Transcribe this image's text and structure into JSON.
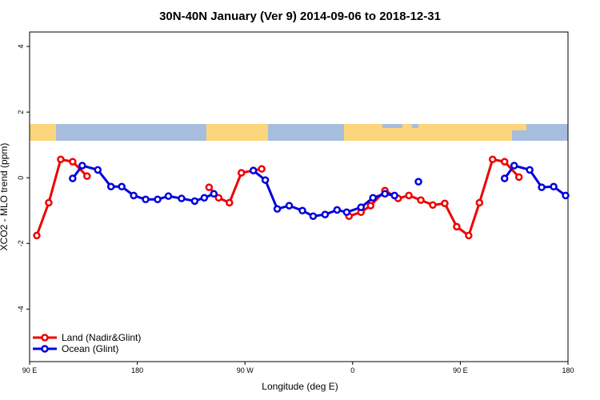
{
  "chart_data": {
    "type": "line",
    "title": "30N-40N January (Ver 9)   2014-09-06 to 2018-12-31",
    "x_label": "Longitude (deg E)",
    "y_label": "XCO2 - MLO trend (ppm)",
    "xlim": [
      90,
      540
    ],
    "ylim": [
      -5.6,
      4.44
    ],
    "xticks": [
      {
        "value": 90,
        "label": "90 E"
      },
      {
        "value": 180,
        "label": "180"
      },
      {
        "value": 270,
        "label": "90 W"
      },
      {
        "value": 360,
        "label": "0"
      },
      {
        "value": 450,
        "label": "90 E"
      },
      {
        "value": 540,
        "label": "180"
      }
    ],
    "yticks": [
      4,
      2,
      0,
      -2,
      -4
    ],
    "legend": "bottom-left",
    "series": [
      {
        "name": "Land (Nadir&Glint)",
        "color": "#ee0000",
        "x": [
          96,
          106,
          116,
          126,
          138,
          139,
          240,
          248,
          257,
          267,
          277,
          284,
          285,
          357,
          367,
          375,
          387,
          398,
          407,
          417,
          427,
          437,
          447,
          457,
          466,
          477,
          487,
          499
        ],
        "values": [
          -1.76,
          -0.76,
          0.56,
          0.49,
          0.05,
          null,
          -0.29,
          -0.61,
          -0.76,
          0.15,
          0.22,
          0.27,
          null,
          -1.17,
          -1.05,
          -0.85,
          -0.39,
          -0.63,
          -0.54,
          -0.68,
          -0.83,
          -0.78,
          -1.49,
          -1.76,
          -0.76,
          0.56,
          0.49,
          0.02
        ]
      },
      {
        "name": "Ocean (Glint)",
        "color": "#0000dd",
        "x": [
          126,
          134,
          147,
          158,
          167,
          177,
          187,
          197,
          206,
          217,
          228,
          236,
          244,
          260,
          277,
          287,
          297,
          307,
          318,
          327,
          337,
          347,
          355,
          367,
          377,
          387,
          395,
          405,
          415,
          450,
          487,
          495,
          508,
          518,
          528,
          538
        ],
        "values": [
          -0.02,
          0.37,
          0.24,
          -0.27,
          -0.27,
          -0.54,
          -0.66,
          -0.66,
          -0.56,
          -0.63,
          -0.71,
          -0.61,
          -0.49,
          null,
          0.22,
          -0.07,
          -0.95,
          -0.85,
          -1.0,
          -1.17,
          -1.12,
          -0.98,
          -1.05,
          -0.9,
          -0.61,
          -0.49,
          -0.54,
          null,
          -0.12,
          null,
          -0.02,
          0.37,
          0.24,
          -0.29,
          -0.27,
          -0.54
        ]
      }
    ]
  }
}
